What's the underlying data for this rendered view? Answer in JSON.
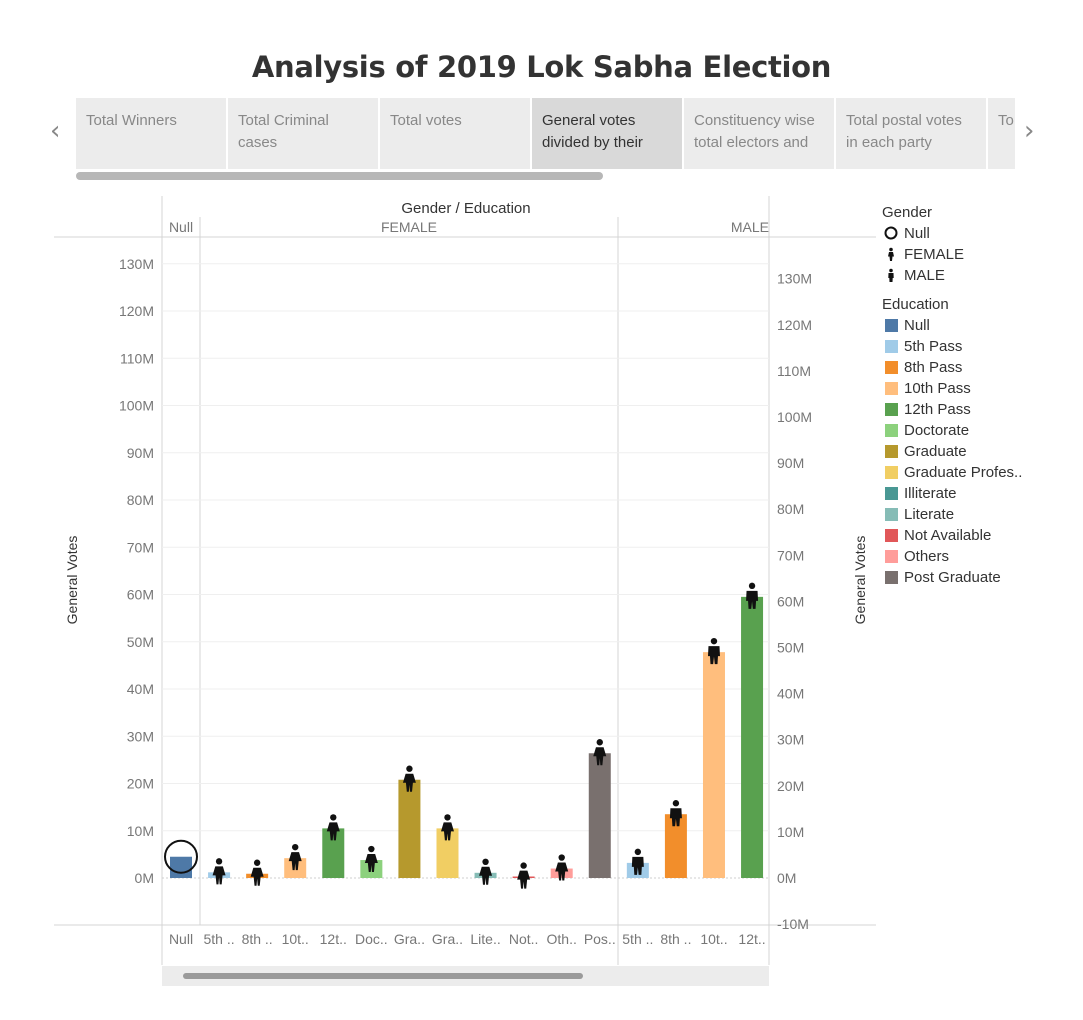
{
  "title": "Analysis of 2019 Lok Sabha Election",
  "nav": {
    "prev": "‹",
    "next": "›"
  },
  "tabs": [
    {
      "label": "Total Winners",
      "active": false
    },
    {
      "label": "Total Criminal cases",
      "active": false
    },
    {
      "label": "Total votes",
      "active": false
    },
    {
      "label": "General votes divided by their",
      "active": true
    },
    {
      "label": "Constituency wise total electors and",
      "active": false
    },
    {
      "label": "Total postal votes in each party",
      "active": false
    },
    {
      "label": "To ea",
      "active": false
    }
  ],
  "legend": {
    "gender_title": "Gender",
    "gender": [
      {
        "label": "Null",
        "icon": "circle-icon"
      },
      {
        "label": "FEMALE",
        "icon": "person-female-icon"
      },
      {
        "label": "MALE",
        "icon": "person-male-icon"
      }
    ],
    "education_title": "Education",
    "education": [
      {
        "label": "Null",
        "color": "#4e79a7"
      },
      {
        "label": "5th Pass",
        "color": "#a0cbe8"
      },
      {
        "label": "8th Pass",
        "color": "#f28e2b"
      },
      {
        "label": "10th Pass",
        "color": "#ffbe7d"
      },
      {
        "label": "12th Pass",
        "color": "#59a14f"
      },
      {
        "label": "Doctorate",
        "color": "#8cd17d"
      },
      {
        "label": "Graduate",
        "color": "#b6992d"
      },
      {
        "label": "Graduate Profes..",
        "color": "#f1ce63"
      },
      {
        "label": "Illiterate",
        "color": "#499894"
      },
      {
        "label": "Literate",
        "color": "#86bcb6"
      },
      {
        "label": "Not Available",
        "color": "#e15759"
      },
      {
        "label": "Others",
        "color": "#ff9d9a"
      },
      {
        "label": "Post Graduate",
        "color": "#79706e"
      }
    ]
  },
  "chart_data": {
    "type": "bar",
    "title": "Gender / Education",
    "ylabel": "General Votes",
    "ylim": [
      -10000000,
      135000000
    ],
    "left_ticks": [
      "0M",
      "10M",
      "20M",
      "30M",
      "40M",
      "50M",
      "60M",
      "70M",
      "80M",
      "90M",
      "100M",
      "110M",
      "120M",
      "130M"
    ],
    "right_ticks": [
      "-10M",
      "0M",
      "10M",
      "20M",
      "30M",
      "40M",
      "50M",
      "60M",
      "70M",
      "80M",
      "90M",
      "100M",
      "110M",
      "120M",
      "130M"
    ],
    "groups": [
      {
        "name": "Null",
        "count": 1
      },
      {
        "name": "FEMALE",
        "count": 11
      },
      {
        "name": "MALE",
        "count": 4
      }
    ],
    "categories": [
      "Null",
      "5th ..",
      "8th ..",
      "10t..",
      "12t..",
      "Doc..",
      "Gra..",
      "Gra..",
      "Lite..",
      "Not..",
      "Oth..",
      "Pos..",
      "5th ..",
      "8th ..",
      "10t..",
      "12t.."
    ],
    "bars": [
      {
        "gender": "Null",
        "education": "Null",
        "value": 4500000,
        "color": "#4e79a7",
        "marker": "circle-icon"
      },
      {
        "gender": "FEMALE",
        "education": "5th Pass",
        "value": 1200000,
        "color": "#a0cbe8",
        "marker": "person-female-icon"
      },
      {
        "gender": "FEMALE",
        "education": "8th Pass",
        "value": 900000,
        "color": "#f28e2b",
        "marker": "person-female-icon"
      },
      {
        "gender": "FEMALE",
        "education": "10th Pass",
        "value": 4200000,
        "color": "#ffbe7d",
        "marker": "person-female-icon"
      },
      {
        "gender": "FEMALE",
        "education": "12th Pass",
        "value": 10500000,
        "color": "#59a14f",
        "marker": "person-female-icon"
      },
      {
        "gender": "FEMALE",
        "education": "Doctorate",
        "value": 3800000,
        "color": "#8cd17d",
        "marker": "person-female-icon"
      },
      {
        "gender": "FEMALE",
        "education": "Graduate",
        "value": 20800000,
        "color": "#b6992d",
        "marker": "person-female-icon"
      },
      {
        "gender": "FEMALE",
        "education": "Graduate Profes..",
        "value": 10500000,
        "color": "#f1ce63",
        "marker": "person-female-icon"
      },
      {
        "gender": "FEMALE",
        "education": "Literate",
        "value": 1100000,
        "color": "#86bcb6",
        "marker": "person-female-icon"
      },
      {
        "gender": "FEMALE",
        "education": "Not Available",
        "value": 300000,
        "color": "#e15759",
        "marker": "person-female-icon"
      },
      {
        "gender": "FEMALE",
        "education": "Others",
        "value": 2000000,
        "color": "#ff9d9a",
        "marker": "person-female-icon"
      },
      {
        "gender": "FEMALE",
        "education": "Post Graduate",
        "value": 26400000,
        "color": "#79706e",
        "marker": "person-female-icon"
      },
      {
        "gender": "MALE",
        "education": "5th Pass",
        "value": 3200000,
        "color": "#a0cbe8",
        "marker": "person-male-icon"
      },
      {
        "gender": "MALE",
        "education": "8th Pass",
        "value": 13500000,
        "color": "#f28e2b",
        "marker": "person-male-icon"
      },
      {
        "gender": "MALE",
        "education": "10th Pass",
        "value": 47800000,
        "color": "#ffbe7d",
        "marker": "person-male-icon"
      },
      {
        "gender": "MALE",
        "education": "12th Pass",
        "value": 59500000,
        "color": "#59a14f",
        "marker": "person-male-icon"
      }
    ],
    "grid": true
  }
}
